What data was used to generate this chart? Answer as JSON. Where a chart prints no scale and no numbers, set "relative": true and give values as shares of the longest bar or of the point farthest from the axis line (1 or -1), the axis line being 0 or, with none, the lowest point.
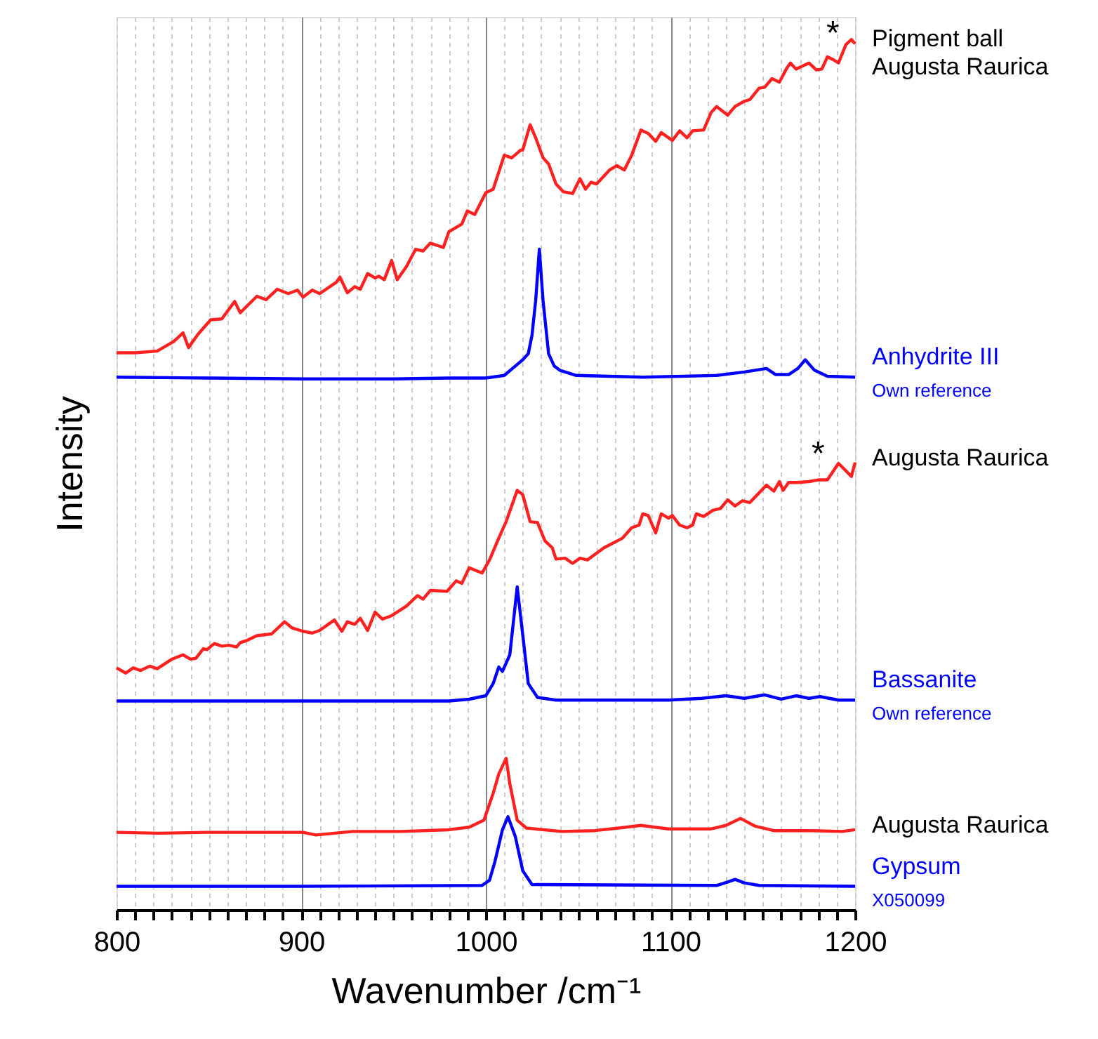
{
  "chart_data": {
    "type": "line",
    "relative": true,
    "xlabel": "Wavenumber /cm⁻¹",
    "ylabel": "Intensity",
    "grid": "x",
    "marker": "none",
    "line_style": "solid",
    "xlim": [
      800,
      1200
    ],
    "xticks": [
      800,
      {
        "value": 810,
        "label": null
      },
      {
        "value": 820,
        "label": null
      },
      {
        "value": 830,
        "label": null
      },
      {
        "value": 840,
        "label": null
      },
      {
        "value": 850,
        "label": null
      },
      {
        "value": 860,
        "label": null
      },
      {
        "value": 870,
        "label": null
      },
      {
        "value": 880,
        "label": null
      },
      {
        "value": 890,
        "label": null
      },
      900,
      {
        "value": 910,
        "label": null
      },
      {
        "value": 920,
        "label": null
      },
      {
        "value": 930,
        "label": null
      },
      {
        "value": 940,
        "label": null
      },
      {
        "value": 950,
        "label": null
      },
      {
        "value": 960,
        "label": null
      },
      {
        "value": 970,
        "label": null
      },
      {
        "value": 980,
        "label": null
      },
      {
        "value": 990,
        "label": null
      },
      1000,
      {
        "value": 1010,
        "label": null
      },
      {
        "value": 1020,
        "label": null
      },
      {
        "value": 1030,
        "label": null
      },
      {
        "value": 1040,
        "label": null
      },
      {
        "value": 1050,
        "label": null
      },
      {
        "value": 1060,
        "label": null
      },
      {
        "value": 1070,
        "label": null
      },
      {
        "value": 1080,
        "label": null
      },
      {
        "value": 1090,
        "label": null
      },
      1100,
      {
        "value": 1110,
        "label": null
      },
      {
        "value": 1120,
        "label": null
      },
      {
        "value": 1130,
        "label": null
      },
      {
        "value": 1140,
        "label": null
      },
      {
        "value": 1150,
        "label": null
      },
      {
        "value": 1160,
        "label": null
      },
      {
        "value": 1170,
        "label": null
      },
      {
        "value": 1180,
        "label": null
      },
      {
        "value": 1190,
        "label": null
      },
      1200
    ],
    "annotations": [
      "*",
      "*"
    ],
    "series": [
      {
        "name": "Pigment ball\nAugusta Raurica",
        "color": "#ff2020",
        "x": [
          800,
          810,
          822,
          831,
          836,
          839,
          844,
          851,
          857,
          864,
          867,
          876,
          881,
          887,
          893,
          898,
          901,
          906,
          910,
          919,
          921,
          925,
          929,
          932,
          936,
          940,
          942,
          945,
          949,
          952,
          957,
          962,
          966,
          970,
          977,
          980,
          987,
          990,
          994,
          1000,
          1004,
          1010,
          1014,
          1019,
          1020,
          1024,
          1027,
          1031,
          1034,
          1038,
          1042,
          1047,
          1051,
          1054,
          1057,
          1060,
          1067,
          1071,
          1075,
          1079,
          1084,
          1088,
          1092,
          1095,
          1101,
          1105,
          1109,
          1112,
          1118,
          1122,
          1125,
          1131,
          1135,
          1140,
          1143,
          1148,
          1151,
          1155,
          1159,
          1163,
          1165,
          1168,
          1175,
          1179,
          1182,
          1185,
          1188,
          1191,
          1195,
          1198,
          1200
        ],
        "values": [
          0.64,
          0.64,
          0.642,
          0.653,
          0.663,
          0.646,
          0.661,
          0.678,
          0.679,
          0.699,
          0.686,
          0.705,
          0.701,
          0.713,
          0.708,
          0.712,
          0.704,
          0.712,
          0.708,
          0.721,
          0.727,
          0.709,
          0.716,
          0.713,
          0.731,
          0.726,
          0.728,
          0.724,
          0.746,
          0.724,
          0.739,
          0.759,
          0.757,
          0.766,
          0.761,
          0.779,
          0.788,
          0.803,
          0.799,
          0.824,
          0.828,
          0.867,
          0.864,
          0.873,
          0.873,
          0.902,
          0.887,
          0.864,
          0.857,
          0.834,
          0.825,
          0.823,
          0.84,
          0.828,
          0.836,
          0.834,
          0.85,
          0.855,
          0.85,
          0.867,
          0.896,
          0.892,
          0.883,
          0.893,
          0.884,
          0.895,
          0.887,
          0.895,
          0.896,
          0.916,
          0.923,
          0.913,
          0.923,
          0.929,
          0.931,
          0.944,
          0.945,
          0.955,
          0.951,
          0.967,
          0.973,
          0.966,
          0.973,
          0.965,
          0.966,
          0.98,
          0.977,
          0.973,
          0.994,
          1.0,
          0.995
        ]
      },
      {
        "name": "Anhydrite III\nOwn reference",
        "color": "#0000ff",
        "x": [
          800,
          850,
          902,
          950,
          980,
          1000,
          1010,
          1015,
          1020,
          1023,
          1025,
          1027,
          1029,
          1031,
          1034,
          1037,
          1040,
          1049,
          1085,
          1125,
          1140,
          1152,
          1157,
          1164,
          1169,
          1173,
          1178,
          1185,
          1200
        ],
        "values": [
          0.612,
          0.611,
          0.61,
          0.61,
          0.611,
          0.611,
          0.614,
          0.623,
          0.632,
          0.639,
          0.66,
          0.7,
          0.759,
          0.7,
          0.639,
          0.625,
          0.62,
          0.614,
          0.612,
          0.614,
          0.618,
          0.622,
          0.615,
          0.615,
          0.622,
          0.632,
          0.62,
          0.613,
          0.612
        ]
      },
      {
        "name": "Augusta Raurica",
        "color": "#ff2020",
        "x": [
          800,
          805,
          809,
          813,
          818,
          822,
          830,
          836,
          840,
          843,
          847,
          849,
          853,
          857,
          861,
          865,
          867,
          870,
          876,
          884,
          891,
          895,
          901,
          906,
          910,
          918,
          922,
          925,
          929,
          932,
          936,
          940,
          944,
          949,
          957,
          963,
          966,
          970,
          979,
          984,
          987,
          991,
          998,
          1002,
          1007,
          1011,
          1017,
          1020,
          1024,
          1028,
          1032,
          1036,
          1038,
          1043,
          1047,
          1051,
          1055,
          1064,
          1074,
          1079,
          1083,
          1085,
          1088,
          1092,
          1095,
          1099,
          1101,
          1105,
          1109,
          1112,
          1114,
          1118,
          1123,
          1127,
          1131,
          1135,
          1139,
          1143,
          1148,
          1152,
          1156,
          1159,
          1161,
          1164,
          1169,
          1175,
          1180,
          1185,
          1191,
          1198,
          1200
        ],
        "values": [
          0.278,
          0.272,
          0.278,
          0.275,
          0.28,
          0.277,
          0.288,
          0.293,
          0.288,
          0.289,
          0.3,
          0.299,
          0.306,
          0.303,
          0.304,
          0.302,
          0.307,
          0.309,
          0.315,
          0.317,
          0.331,
          0.324,
          0.32,
          0.318,
          0.321,
          0.333,
          0.32,
          0.331,
          0.328,
          0.335,
          0.321,
          0.342,
          0.334,
          0.338,
          0.349,
          0.361,
          0.357,
          0.367,
          0.366,
          0.378,
          0.375,
          0.393,
          0.387,
          0.402,
          0.427,
          0.446,
          0.482,
          0.477,
          0.446,
          0.445,
          0.424,
          0.416,
          0.403,
          0.404,
          0.398,
          0.404,
          0.402,
          0.416,
          0.427,
          0.439,
          0.442,
          0.455,
          0.453,
          0.433,
          0.455,
          0.45,
          0.453,
          0.442,
          0.439,
          0.442,
          0.455,
          0.452,
          0.459,
          0.461,
          0.471,
          0.464,
          0.47,
          0.468,
          0.479,
          0.488,
          0.481,
          0.492,
          0.482,
          0.491,
          0.491,
          0.492,
          0.494,
          0.494,
          0.513,
          0.498,
          0.514
        ]
      },
      {
        "name": "Bassanite\nOwn reference",
        "color": "#0000ff",
        "x": [
          800,
          850,
          900,
          950,
          980,
          991,
          1000,
          1004,
          1007,
          1009,
          1013,
          1017,
          1020,
          1023,
          1028,
          1038,
          1099,
          1117,
          1130,
          1140,
          1151,
          1160,
          1168,
          1175,
          1181,
          1191,
          1200
        ],
        "values": [
          0.24,
          0.24,
          0.24,
          0.24,
          0.24,
          0.242,
          0.246,
          0.26,
          0.279,
          0.274,
          0.293,
          0.371,
          0.316,
          0.26,
          0.244,
          0.241,
          0.241,
          0.243,
          0.246,
          0.243,
          0.247,
          0.242,
          0.246,
          0.243,
          0.245,
          0.241,
          0.241
        ]
      },
      {
        "name": "Augusta Raurica",
        "color": "#ff2020",
        "x": [
          800,
          823,
          849,
          876,
          901,
          908,
          928,
          954,
          980,
          991,
          999,
          1004,
          1007,
          1011,
          1013,
          1017,
          1022,
          1041,
          1059,
          1072,
          1084,
          1099,
          1122,
          1130,
          1138,
          1146,
          1156,
          1177,
          1193,
          1200
        ],
        "values": [
          0.089,
          0.088,
          0.089,
          0.089,
          0.089,
          0.086,
          0.09,
          0.09,
          0.092,
          0.095,
          0.103,
          0.134,
          0.156,
          0.174,
          0.145,
          0.103,
          0.094,
          0.09,
          0.091,
          0.094,
          0.097,
          0.093,
          0.093,
          0.097,
          0.105,
          0.096,
          0.091,
          0.091,
          0.09,
          0.092
        ]
      },
      {
        "name": "Gypsum\nX050099",
        "color": "#0000ff",
        "x": [
          800,
          900,
          998,
          1002,
          1005,
          1009,
          1012,
          1016,
          1020,
          1025,
          1125,
          1131,
          1135,
          1140,
          1148,
          1200
        ],
        "values": [
          0.027,
          0.027,
          0.028,
          0.034,
          0.056,
          0.092,
          0.107,
          0.084,
          0.045,
          0.029,
          0.028,
          0.032,
          0.035,
          0.031,
          0.028,
          0.027
        ]
      }
    ]
  }
}
